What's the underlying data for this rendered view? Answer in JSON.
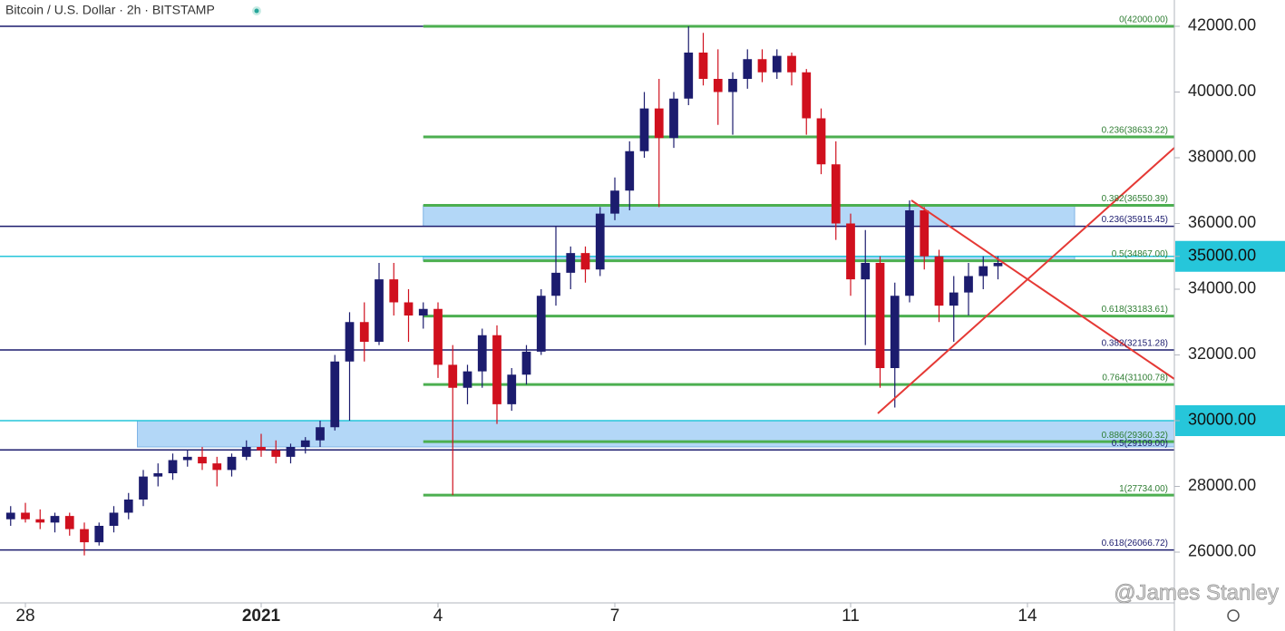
{
  "chart_data": {
    "type": "candlestick",
    "title": "Bitcoin / U.S. Dollar · 2h · BITSTAMP",
    "watermark": "@James Stanley",
    "up_color": "#1c1c6e",
    "down_color": "#d0101e",
    "x": [
      -0.25,
      0,
      0.25,
      0.5,
      0.75,
      1,
      1.25,
      1.5,
      1.75,
      2,
      2.25,
      2.5,
      2.75,
      3,
      3.25,
      3.5,
      3.75,
      4,
      4.25,
      4.5,
      4.75,
      5,
      5.25,
      5.5,
      5.75,
      6,
      6.25,
      6.5,
      6.75,
      7,
      7.25,
      7.5,
      7.75,
      8,
      8.25,
      8.5,
      8.75,
      9,
      9.25,
      9.5,
      9.75,
      10,
      10.25,
      10.5,
      10.75,
      11,
      11.25,
      11.5,
      11.75,
      12,
      12.25,
      12.5,
      12.75,
      13,
      13.25,
      13.5,
      13.75,
      14,
      14.25,
      14.5,
      14.75,
      15,
      15.25,
      15.5,
      15.75,
      16,
      16.25,
      16.5
    ],
    "open": [
      27000,
      27200,
      27000,
      26900,
      27100,
      26700,
      26300,
      26800,
      27200,
      27600,
      28300,
      28400,
      28800,
      28900,
      28700,
      28500,
      28900,
      29200,
      29100,
      28900,
      29200,
      29400,
      29800,
      31800,
      33000,
      32400,
      34300,
      33600,
      33200,
      33400,
      31700,
      31000,
      31500,
      32600,
      30500,
      31400,
      32100,
      33800,
      34500,
      35100,
      34600,
      36300,
      37000,
      38200,
      39500,
      38600,
      39800,
      41200,
      40400,
      40000,
      40400,
      41000,
      40600,
      41100,
      40600,
      39200,
      37800,
      36000,
      34300,
      34800,
      31600,
      33800,
      36400,
      35000,
      33500,
      33900,
      34400,
      34700
    ],
    "high": [
      27400,
      27500,
      27300,
      27200,
      27200,
      26900,
      26900,
      27400,
      27800,
      28500,
      28700,
      29000,
      29100,
      29200,
      28900,
      29000,
      29400,
      29600,
      29400,
      29300,
      29500,
      30000,
      32000,
      33300,
      33600,
      34800,
      34800,
      34000,
      33600,
      33600,
      32300,
      31700,
      32800,
      32900,
      31600,
      32300,
      34000,
      35900,
      35300,
      35300,
      36500,
      37400,
      38500,
      40000,
      40400,
      40000,
      42000,
      41800,
      41300,
      40600,
      41300,
      41300,
      41300,
      41200,
      40700,
      39500,
      38500,
      36300,
      35800,
      35000,
      34200,
      36700,
      36500,
      35200,
      34400,
      34800,
      35000,
      35000
    ],
    "low": [
      26800,
      26900,
      26700,
      26600,
      26500,
      25900,
      26200,
      26600,
      27000,
      27400,
      28000,
      28200,
      28600,
      28500,
      28000,
      28300,
      28800,
      28900,
      28700,
      28700,
      29000,
      29200,
      29700,
      30000,
      31800,
      32300,
      33200,
      32400,
      32800,
      31300,
      27734,
      30500,
      31000,
      29900,
      30300,
      31100,
      32000,
      33500,
      34000,
      34200,
      34400,
      36100,
      36400,
      38000,
      36500,
      38300,
      39600,
      40200,
      39000,
      38700,
      40100,
      40300,
      40400,
      40200,
      38700,
      37500,
      35500,
      33800,
      32300,
      31000,
      30400,
      33600,
      34600,
      33000,
      32400,
      33200,
      34000,
      34300
    ],
    "close": [
      27200,
      27000,
      26900,
      27100,
      26700,
      26300,
      26800,
      27200,
      27600,
      28300,
      28400,
      28800,
      28900,
      28700,
      28500,
      28900,
      29200,
      29100,
      28900,
      29200,
      29400,
      29800,
      31800,
      33000,
      32400,
      34300,
      33600,
      33200,
      33400,
      31700,
      31000,
      31500,
      32600,
      30500,
      31400,
      32100,
      33800,
      34500,
      35100,
      34600,
      36300,
      37000,
      38200,
      39500,
      38600,
      39800,
      41200,
      40400,
      40000,
      40400,
      41000,
      40600,
      41100,
      40600,
      39200,
      37800,
      36000,
      34300,
      34800,
      31600,
      33800,
      36400,
      35000,
      33500,
      33900,
      34400,
      34700,
      34800
    ],
    "xlim": [
      -0.4308,
      19.4923
    ],
    "xticks": [
      {
        "value": 0,
        "label": "28"
      },
      {
        "value": 4,
        "label": "2021"
      },
      {
        "value": 7,
        "label": "4"
      },
      {
        "value": 10,
        "label": "7"
      },
      {
        "value": 14,
        "label": "11"
      },
      {
        "value": 17,
        "label": "14"
      }
    ],
    "ylim": [
      24455,
      42800
    ],
    "yticks": [
      {
        "value": 26000,
        "label": "26000.00"
      },
      {
        "value": 28000,
        "label": "28000.00"
      },
      {
        "value": 30000,
        "label": "30000.00",
        "highlight": true
      },
      {
        "value": 32000,
        "label": "32000.00"
      },
      {
        "value": 34000,
        "label": "34000.00"
      },
      {
        "value": 35000,
        "label": "35000.00",
        "highlight": true
      },
      {
        "value": 36000,
        "label": "36000.00"
      },
      {
        "value": 38000,
        "label": "38000.00"
      },
      {
        "value": 40000,
        "label": "40000.00"
      },
      {
        "value": 42000,
        "label": "42000.00"
      }
    ],
    "zones": [
      {
        "top": 36550.39,
        "bottom": 35915.45,
        "x_start": 6.75,
        "x_end": 17.8
      },
      {
        "top": 35000,
        "bottom": 34867,
        "x_start": 6.75,
        "x_end": 17.8
      },
      {
        "top": 30000,
        "bottom": 29200,
        "x_start": 1.9,
        "x_end": 19.4923
      }
    ],
    "levels": [
      {
        "price": 42000,
        "color": "#1c1c6e",
        "x_start": -0.4308,
        "x_end": 6.75
      },
      {
        "price": 35915.45,
        "label": "0.236(35915.45)",
        "color": "#1c1c6e",
        "x_start": -0.4308,
        "x_end": 19.4923
      },
      {
        "price": 32151.28,
        "label": "0.382(32151.28)",
        "color": "#1c1c6e",
        "x_start": -0.4308,
        "x_end": 19.4923
      },
      {
        "price": 29109,
        "label": "0.5(29109.00)",
        "color": "#1c1c6e",
        "x_start": -0.4308,
        "x_end": 19.4923
      },
      {
        "price": 26066.72,
        "label": "0.618(26066.72)",
        "color": "#1c1c6e",
        "x_start": -0.4308,
        "x_end": 19.4923
      },
      {
        "price": 35000,
        "color": "#26c6da",
        "x_start": -0.4308,
        "x_end": 19.4923
      },
      {
        "price": 30000,
        "color": "#26c6da",
        "x_start": -0.4308,
        "x_end": 19.4923
      },
      {
        "price": 42000,
        "label": "0(42000.00)",
        "color": "#4caf50",
        "x_start": 6.75,
        "x_end": 19.4923
      },
      {
        "price": 38633.22,
        "label": "0.236(38633.22)",
        "color": "#4caf50",
        "x_start": 6.75,
        "x_end": 19.4923
      },
      {
        "price": 36550.39,
        "label": "0.382(36550.39)",
        "color": "#4caf50",
        "x_start": 6.75,
        "x_end": 19.4923
      },
      {
        "price": 34867,
        "label": "0.5(34867.00)",
        "color": "#4caf50",
        "x_start": 6.75,
        "x_end": 19.4923
      },
      {
        "price": 33183.61,
        "label": "0.618(33183.61)",
        "color": "#4caf50",
        "x_start": 6.75,
        "x_end": 19.4923
      },
      {
        "price": 31100.78,
        "label": "0.764(31100.78)",
        "color": "#4caf50",
        "x_start": 6.75,
        "x_end": 19.4923
      },
      {
        "price": 29360.32,
        "label": "0.886(29360.32)",
        "color": "#4caf50",
        "x_start": 6.75,
        "x_end": 19.4923
      },
      {
        "price": 27734,
        "label": "1(27734.00)",
        "color": "#4caf50",
        "x_start": 6.75,
        "x_end": 19.4923
      }
    ]
  }
}
